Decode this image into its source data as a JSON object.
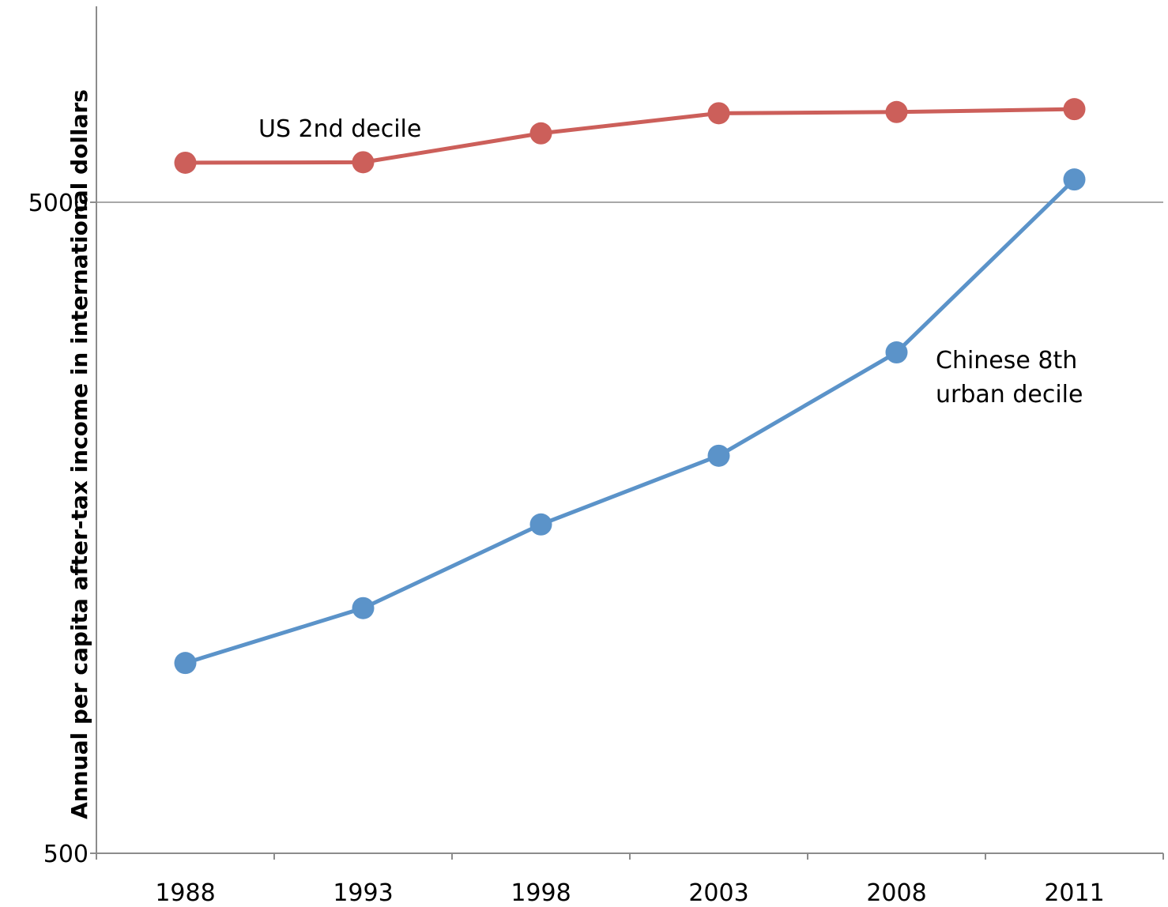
{
  "chart_data": {
    "type": "line",
    "title": "",
    "xlabel": "",
    "ylabel": "Annual per capita after-tax income in  international dollars",
    "y_scale": "log",
    "ylim": [
      500,
      20000
    ],
    "y_ticks": [
      "500",
      "5000"
    ],
    "y_tick_values": [
      500,
      5000
    ],
    "categories": [
      "1988",
      "1993",
      "1998",
      "2003",
      "2008",
      "2011"
    ],
    "grid": {
      "horizontal": true,
      "vertical": false
    },
    "legend": "none",
    "series": [
      {
        "name": "US 2nd decile",
        "color": "#cc5f5a",
        "values": [
          5750,
          5760,
          6380,
          6850,
          6880,
          6950
        ]
      },
      {
        "name": "Chinese 8th urban decile",
        "label_lines": [
          "Chinese 8th",
          "urban decile"
        ],
        "color": "#5b93c9",
        "values": [
          980,
          1190,
          1600,
          2040,
          2940,
          5420
        ]
      }
    ]
  }
}
